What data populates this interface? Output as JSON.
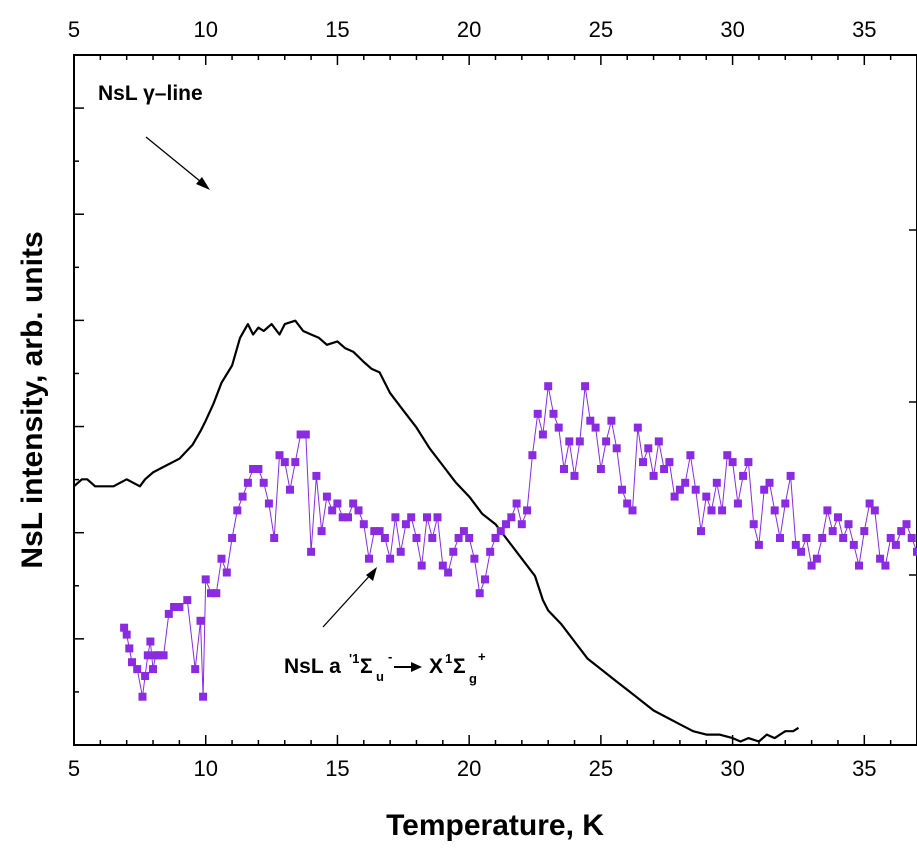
{
  "chart_data": {
    "type": "line",
    "xlabel": "Temperature, K",
    "ylabel": "NsL intensity, arb. units",
    "xlim": [
      5,
      37
    ],
    "ylim": [
      0,
      100
    ],
    "x_ticks": [
      "5",
      "10",
      "15",
      "20",
      "25",
      "30",
      "35"
    ],
    "top_axis_ticks": [
      "5",
      "10",
      "15",
      "20",
      "25",
      "30",
      "35"
    ],
    "y_tick_labels": "none",
    "grid": false,
    "legend": "none",
    "annotations": {
      "gamma_line": "NsL γ–line",
      "transition_prefix": "NsL a",
      "transition_sup1": "'1",
      "transition_sigma1": "Σ",
      "transition_sub1": "u",
      "transition_sup2": "-",
      "transition_X": "X",
      "transition_sup3": "1",
      "transition_sigma2": "Σ",
      "transition_sub2": "g",
      "transition_sup4": "+"
    },
    "series": [
      {
        "color": "#000000",
        "marker": "none",
        "x": [
          5.0,
          5.3,
          5.5,
          5.8,
          6.0,
          6.5,
          7.0,
          7.5,
          7.7,
          8.0,
          8.5,
          9.0,
          9.5,
          9.8,
          10.0,
          10.3,
          10.6,
          11.0,
          11.3,
          11.6,
          11.8,
          12.0,
          12.2,
          12.5,
          12.8,
          13.0,
          13.4,
          13.7,
          14.0,
          14.3,
          14.6,
          15.0,
          15.3,
          15.6,
          16.0,
          16.3,
          16.6,
          17.0,
          17.5,
          18.0,
          18.5,
          19.0,
          19.5,
          20.0,
          20.5,
          21.0,
          21.5,
          22.0,
          22.5,
          22.8,
          23.0,
          23.5,
          24.0,
          24.5,
          25.0,
          25.5,
          26.0,
          26.5,
          27.0,
          27.5,
          28.0,
          28.5,
          29.0,
          29.5,
          30.0,
          30.3,
          30.6,
          31.0,
          31.3,
          31.6,
          32.0,
          32.3,
          32.5
        ],
        "y": [
          37.5,
          38.5,
          38.5,
          37.5,
          37.5,
          37.5,
          38.5,
          37.5,
          38.5,
          39.5,
          40.5,
          41.5,
          43.5,
          45.5,
          47.0,
          49.5,
          52.5,
          55.0,
          59.0,
          61.0,
          59.5,
          60.5,
          60.0,
          61.0,
          59.5,
          61.0,
          61.5,
          60.0,
          59.5,
          59.0,
          58.0,
          58.5,
          57.5,
          57.0,
          55.5,
          54.5,
          54.0,
          51.0,
          48.5,
          46.0,
          43.0,
          40.5,
          38.0,
          36.0,
          33.5,
          32.0,
          29.5,
          27.0,
          24.5,
          21.0,
          19.5,
          17.5,
          15.0,
          12.5,
          11.0,
          9.5,
          8.0,
          6.5,
          5.0,
          4.0,
          3.0,
          2.0,
          1.5,
          1.5,
          1.0,
          0.5,
          1.0,
          0.5,
          1.5,
          1.0,
          2.0,
          2.0,
          2.5
        ]
      },
      {
        "color": "#8a2be2",
        "marker": "square",
        "x": [
          6.9,
          7.0,
          7.1,
          7.2,
          7.4,
          7.6,
          7.7,
          7.8,
          7.9,
          8.0,
          8.1,
          8.2,
          8.4,
          8.6,
          8.8,
          9.0,
          9.3,
          9.6,
          9.8,
          9.9,
          10.0,
          10.2,
          10.4,
          10.6,
          10.8,
          11.0,
          11.2,
          11.4,
          11.6,
          11.8,
          12.0,
          12.2,
          12.4,
          12.6,
          12.8,
          13.0,
          13.2,
          13.4,
          13.6,
          13.8,
          14.0,
          14.2,
          14.4,
          14.6,
          14.8,
          15.0,
          15.2,
          15.4,
          15.6,
          15.8,
          16.0,
          16.2,
          16.4,
          16.6,
          16.8,
          17.0,
          17.2,
          17.4,
          17.6,
          17.8,
          18.0,
          18.2,
          18.4,
          18.6,
          18.8,
          19.0,
          19.2,
          19.4,
          19.6,
          19.8,
          20.0,
          20.2,
          20.4,
          20.6,
          20.8,
          21.0,
          21.2,
          21.4,
          21.6,
          21.8,
          22.0,
          22.2,
          22.4,
          22.6,
          22.8,
          23.0,
          23.2,
          23.4,
          23.6,
          23.8,
          24.0,
          24.2,
          24.4,
          24.6,
          24.8,
          25.0,
          25.2,
          25.4,
          25.6,
          25.8,
          26.0,
          26.2,
          26.4,
          26.6,
          26.8,
          27.0,
          27.2,
          27.4,
          27.6,
          27.8,
          28.0,
          28.2,
          28.4,
          28.6,
          28.8,
          29.0,
          29.2,
          29.4,
          29.6,
          29.8,
          30.0,
          30.2,
          30.4,
          30.6,
          30.8,
          31.0,
          31.2,
          31.4,
          31.6,
          31.8,
          32.0,
          32.2,
          32.4,
          32.6,
          32.8,
          33.0,
          33.2,
          33.4,
          33.6,
          33.8,
          34.0,
          34.2,
          34.4,
          34.6,
          34.8,
          35.0,
          35.2,
          35.4,
          35.6,
          35.8,
          36.0,
          36.2,
          36.4,
          36.6,
          36.8,
          37.0
        ],
        "y": [
          17,
          16,
          14,
          12,
          11,
          7,
          10,
          13,
          15,
          11,
          13,
          13,
          13,
          19,
          20,
          20,
          21,
          11,
          18,
          7,
          24,
          22,
          22,
          27,
          25,
          30,
          34,
          36,
          38,
          40,
          40,
          38,
          35,
          30,
          42,
          41,
          37,
          41,
          45,
          45,
          28,
          39,
          31,
          36,
          34,
          35,
          33,
          33,
          35,
          34,
          32,
          27,
          31,
          31,
          30,
          27,
          33,
          28,
          32,
          33,
          30,
          26,
          33,
          30,
          33,
          26,
          25,
          28,
          30,
          31,
          30,
          27,
          22,
          24,
          28,
          30,
          31,
          32,
          33,
          35,
          32,
          34,
          42,
          48,
          45,
          52,
          48,
          46,
          40,
          44,
          39,
          44,
          52,
          47,
          46,
          40,
          44,
          47,
          43,
          37,
          35,
          34,
          46,
          41,
          43,
          39,
          44,
          40,
          41,
          36,
          37,
          38,
          42,
          37,
          31,
          36,
          34,
          38,
          34,
          42,
          41,
          35,
          39,
          41,
          32,
          29,
          37,
          38,
          34,
          30,
          35,
          39,
          29,
          28,
          30,
          26,
          27,
          30,
          34,
          31,
          33,
          30,
          32,
          29,
          26,
          31,
          35,
          34,
          27,
          26,
          30,
          29,
          31,
          32,
          30,
          28
        ]
      }
    ]
  }
}
